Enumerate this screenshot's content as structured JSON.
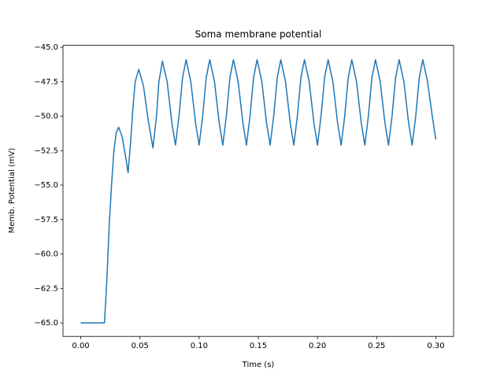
{
  "chart_data": {
    "type": "line",
    "title": "Soma membrane potential",
    "xlabel": "Time (s)",
    "ylabel": "Memb. Potential (mV)",
    "x": [
      0,
      0.02,
      0.022,
      0.024,
      0.026,
      0.028,
      0.03,
      0.032,
      0.035,
      0.038,
      0.04,
      0.042,
      0.044,
      0.046,
      0.049,
      0.053,
      0.057,
      0.061,
      0.064,
      0.066,
      0.069,
      0.073,
      0.077,
      0.08,
      0.083,
      0.086,
      0.089,
      0.093,
      0.097,
      0.1,
      0.103,
      0.106,
      0.109,
      0.113,
      0.117,
      0.12,
      0.123,
      0.126,
      0.129,
      0.133,
      0.137,
      0.14,
      0.143,
      0.146,
      0.149,
      0.153,
      0.157,
      0.16,
      0.163,
      0.166,
      0.169,
      0.173,
      0.177,
      0.18,
      0.183,
      0.186,
      0.189,
      0.193,
      0.197,
      0.2,
      0.203,
      0.206,
      0.209,
      0.213,
      0.217,
      0.22,
      0.223,
      0.226,
      0.229,
      0.233,
      0.237,
      0.24,
      0.243,
      0.246,
      0.249,
      0.253,
      0.257,
      0.26,
      0.263,
      0.266,
      0.269,
      0.273,
      0.277,
      0.28,
      0.283,
      0.286,
      0.289,
      0.293,
      0.297,
      0.3
    ],
    "series": [
      {
        "color": "#1f77b4",
        "values": [
          -65,
          -65,
          -62,
          -58,
          -55,
          -52.5,
          -51.2,
          -50.8,
          -51.5,
          -53,
          -54.1,
          -52,
          -49.5,
          -47.5,
          -46.6,
          -47.8,
          -50.3,
          -52.3,
          -50,
          -47.5,
          -46.0,
          -47.5,
          -50.5,
          -52.1,
          -50,
          -47.2,
          -45.9,
          -47.5,
          -50.5,
          -52.1,
          -50,
          -47.2,
          -45.9,
          -47.5,
          -50.5,
          -52.1,
          -50,
          -47.2,
          -45.9,
          -47.5,
          -50.5,
          -52.1,
          -50,
          -47.2,
          -45.9,
          -47.5,
          -50.5,
          -52.1,
          -50,
          -47.2,
          -45.9,
          -47.5,
          -50.5,
          -52.1,
          -50,
          -47.2,
          -45.9,
          -47.5,
          -50.5,
          -52.1,
          -50,
          -47.2,
          -45.9,
          -47.5,
          -50.5,
          -52.1,
          -50,
          -47.2,
          -45.9,
          -47.5,
          -50.5,
          -52.1,
          -50,
          -47.2,
          -45.9,
          -47.5,
          -50.5,
          -52.1,
          -50,
          -47.2,
          -45.9,
          -47.5,
          -50.5,
          -52.1,
          -50,
          -47.2,
          -45.9,
          -47.5,
          -50,
          -51.7
        ]
      }
    ],
    "xlim": [
      -0.015,
      0.315
    ],
    "ylim": [
      -65.98,
      -44.86
    ],
    "xticks": [
      {
        "value": 0,
        "label": "0.00"
      },
      {
        "value": 0.05,
        "label": "0.05"
      },
      {
        "value": 0.1,
        "label": "0.10"
      },
      {
        "value": 0.15,
        "label": "0.15"
      },
      {
        "value": 0.2,
        "label": "0.20"
      },
      {
        "value": 0.25,
        "label": "0.25"
      },
      {
        "value": 0.3,
        "label": "0.30"
      }
    ],
    "yticks": [
      {
        "value": -65,
        "label": "−65.0"
      },
      {
        "value": -62.5,
        "label": "−62.5"
      },
      {
        "value": -60,
        "label": "−60.0"
      },
      {
        "value": -57.5,
        "label": "−57.5"
      },
      {
        "value": -55,
        "label": "−55.0"
      },
      {
        "value": -52.5,
        "label": "−52.5"
      },
      {
        "value": -50,
        "label": "−50.0"
      },
      {
        "value": -47.5,
        "label": "−47.5"
      },
      {
        "value": -45,
        "label": "−45.0"
      }
    ]
  }
}
